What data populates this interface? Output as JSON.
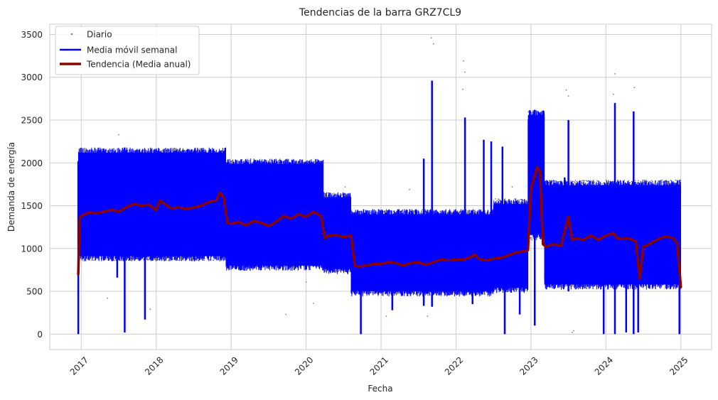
{
  "chart_data": {
    "type": "line",
    "title": "Tendencias de la barra GRZ7CL9",
    "xlabel": "Fecha",
    "ylabel": "Demanda de energía",
    "x_ticks": [
      "2017",
      "2018",
      "2019",
      "2020",
      "2021",
      "2022",
      "2023",
      "2024",
      "2025"
    ],
    "y_ticks": [
      "0",
      "500",
      "1000",
      "1500",
      "2000",
      "2500",
      "3000",
      "3500"
    ],
    "xlim": [
      2016.58,
      2025.41
    ],
    "ylim": [
      -180,
      3620
    ],
    "grid": true,
    "legend_position": "top-left",
    "legend": [
      "Diario",
      "Media móvil semanal",
      "Tendencia (Media anual)"
    ],
    "colors": {
      "daily": "#808080",
      "weekly": "#0000ff",
      "annual": "#8b0000",
      "grid": "#cccccc"
    },
    "series": [
      {
        "name": "Diario",
        "style": "scatter",
        "segments": [
          {
            "x0": 2016.96,
            "x1": 2018.93,
            "lo": 860,
            "hi": 2150
          },
          {
            "x0": 2018.93,
            "x1": 2020.23,
            "lo": 790,
            "hi": 2020
          },
          {
            "x0": 2020.23,
            "x1": 2020.6,
            "lo": 730,
            "hi": 1650
          },
          {
            "x0": 2020.6,
            "x1": 2022.5,
            "lo": 480,
            "hi": 1440
          },
          {
            "x0": 2022.5,
            "x1": 2022.96,
            "lo": 520,
            "hi": 1580
          },
          {
            "x0": 2022.96,
            "x1": 2023.18,
            "lo": 1100,
            "hi": 2600
          },
          {
            "x0": 2023.18,
            "x1": 2025.0,
            "lo": 560,
            "hi": 1800
          }
        ],
        "outliers": [
          {
            "x": 2021.67,
            "y": 3460
          },
          {
            "x": 2021.7,
            "y": 3390
          },
          {
            "x": 2022.1,
            "y": 3190
          },
          {
            "x": 2022.12,
            "y": 3060
          },
          {
            "x": 2022.09,
            "y": 2860
          },
          {
            "x": 2023.47,
            "y": 2850
          },
          {
            "x": 2023.5,
            "y": 2780
          },
          {
            "x": 2024.12,
            "y": 3040
          },
          {
            "x": 2024.38,
            "y": 2880
          },
          {
            "x": 2024.1,
            "y": 2800
          },
          {
            "x": 2017.5,
            "y": 2330
          },
          {
            "x": 2017.35,
            "y": 420
          },
          {
            "x": 2017.92,
            "y": 290
          },
          {
            "x": 2019.73,
            "y": 230
          },
          {
            "x": 2020.0,
            "y": 610
          },
          {
            "x": 2020.1,
            "y": 360
          },
          {
            "x": 2020.52,
            "y": 1720
          },
          {
            "x": 2021.07,
            "y": 210
          },
          {
            "x": 2021.38,
            "y": 1690
          },
          {
            "x": 2021.62,
            "y": 210
          },
          {
            "x": 2021.55,
            "y": 1450
          },
          {
            "x": 2022.75,
            "y": 1720
          },
          {
            "x": 2023.55,
            "y": 20
          },
          {
            "x": 2023.57,
            "y": 40
          }
        ]
      },
      {
        "name": "Media móvil semanal",
        "style": "band",
        "segments": [
          {
            "x0": 2016.96,
            "x1": 2018.93,
            "lo": 950,
            "hi": 2080
          },
          {
            "x0": 2018.93,
            "x1": 2020.23,
            "lo": 840,
            "hi": 1950
          },
          {
            "x0": 2020.23,
            "x1": 2020.6,
            "lo": 800,
            "hi": 1560
          },
          {
            "x0": 2020.6,
            "x1": 2022.5,
            "lo": 540,
            "hi": 1360
          },
          {
            "x0": 2022.5,
            "x1": 2022.96,
            "lo": 580,
            "hi": 1480
          },
          {
            "x0": 2022.96,
            "x1": 2023.18,
            "lo": 1200,
            "hi": 2520
          },
          {
            "x0": 2023.18,
            "x1": 2025.0,
            "lo": 620,
            "hi": 1700
          }
        ],
        "spikes": [
          {
            "x": 2016.96,
            "lo": 0,
            "hi": 2020
          },
          {
            "x": 2017.48,
            "lo": 660,
            "hi": 1000
          },
          {
            "x": 2017.58,
            "lo": 20,
            "hi": 2180
          },
          {
            "x": 2017.85,
            "lo": 170,
            "hi": 1900
          },
          {
            "x": 2020.73,
            "lo": 0,
            "hi": 1400
          },
          {
            "x": 2021.15,
            "lo": 280,
            "hi": 1400
          },
          {
            "x": 2021.57,
            "lo": 330,
            "hi": 2050
          },
          {
            "x": 2021.68,
            "lo": 320,
            "hi": 2960
          },
          {
            "x": 2022.12,
            "lo": 580,
            "hi": 2530
          },
          {
            "x": 2022.22,
            "lo": 350,
            "hi": 1400
          },
          {
            "x": 2022.37,
            "lo": 580,
            "hi": 2270
          },
          {
            "x": 2022.47,
            "lo": 560,
            "hi": 2250
          },
          {
            "x": 2022.62,
            "lo": 580,
            "hi": 2190
          },
          {
            "x": 2022.65,
            "lo": 0,
            "hi": 1400
          },
          {
            "x": 2022.85,
            "lo": 230,
            "hi": 1400
          },
          {
            "x": 2023.05,
            "lo": 100,
            "hi": 2620
          },
          {
            "x": 2023.45,
            "lo": 600,
            "hi": 1830
          },
          {
            "x": 2023.5,
            "lo": 500,
            "hi": 2500
          },
          {
            "x": 2023.97,
            "lo": 0,
            "hi": 1650
          },
          {
            "x": 2024.12,
            "lo": 0,
            "hi": 2700
          },
          {
            "x": 2024.27,
            "lo": 20,
            "hi": 1650
          },
          {
            "x": 2024.37,
            "lo": 0,
            "hi": 2600
          },
          {
            "x": 2024.43,
            "lo": 20,
            "hi": 1700
          },
          {
            "x": 2024.98,
            "lo": 0,
            "hi": 1450
          }
        ]
      },
      {
        "name": "Tendencia (Media anual)",
        "style": "line",
        "x": [
          2016.96,
          2016.98,
          2017.0,
          2017.1,
          2017.2,
          2017.3,
          2017.4,
          2017.5,
          2017.6,
          2017.7,
          2017.8,
          2017.9,
          2018.0,
          2018.05,
          2018.1,
          2018.2,
          2018.3,
          2018.4,
          2018.5,
          2018.6,
          2018.7,
          2018.8,
          2018.85,
          2018.9,
          2018.95,
          2019.0,
          2019.1,
          2019.2,
          2019.3,
          2019.4,
          2019.5,
          2019.6,
          2019.7,
          2019.8,
          2019.9,
          2020.0,
          2020.1,
          2020.2,
          2020.25,
          2020.3,
          2020.4,
          2020.5,
          2020.6,
          2020.65,
          2020.7,
          2020.8,
          2020.9,
          2021.0,
          2021.1,
          2021.2,
          2021.3,
          2021.4,
          2021.5,
          2021.6,
          2021.7,
          2021.8,
          2021.9,
          2022.0,
          2022.1,
          2022.2,
          2022.25,
          2022.3,
          2022.4,
          2022.5,
          2022.6,
          2022.7,
          2022.8,
          2022.9,
          2022.96,
          2023.0,
          2023.05,
          2023.08,
          2023.12,
          2023.16,
          2023.2,
          2023.3,
          2023.4,
          2023.45,
          2023.5,
          2023.55,
          2023.6,
          2023.7,
          2023.8,
          2023.9,
          2024.0,
          2024.1,
          2024.15,
          2024.2,
          2024.3,
          2024.4,
          2024.45,
          2024.5,
          2024.6,
          2024.7,
          2024.8,
          2024.9,
          2024.95,
          2025.0
        ],
        "y": [
          700,
          1350,
          1380,
          1420,
          1410,
          1430,
          1450,
          1430,
          1480,
          1520,
          1500,
          1510,
          1450,
          1560,
          1530,
          1470,
          1480,
          1460,
          1480,
          1500,
          1540,
          1560,
          1650,
          1600,
          1300,
          1290,
          1310,
          1270,
          1320,
          1300,
          1260,
          1310,
          1380,
          1350,
          1400,
          1370,
          1430,
          1380,
          1120,
          1150,
          1160,
          1130,
          1150,
          800,
          790,
          800,
          820,
          820,
          840,
          830,
          800,
          830,
          840,
          810,
          840,
          870,
          860,
          870,
          870,
          900,
          930,
          880,
          860,
          880,
          890,
          920,
          950,
          970,
          980,
          1700,
          1850,
          1950,
          1900,
          1050,
          1020,
          1050,
          1030,
          1200,
          1370,
          1100,
          1120,
          1100,
          1150,
          1100,
          1150,
          1180,
          1120,
          1110,
          1120,
          1080,
          650,
          1020,
          1060,
          1110,
          1140,
          1120,
          1060,
          550
        ]
      }
    ]
  }
}
